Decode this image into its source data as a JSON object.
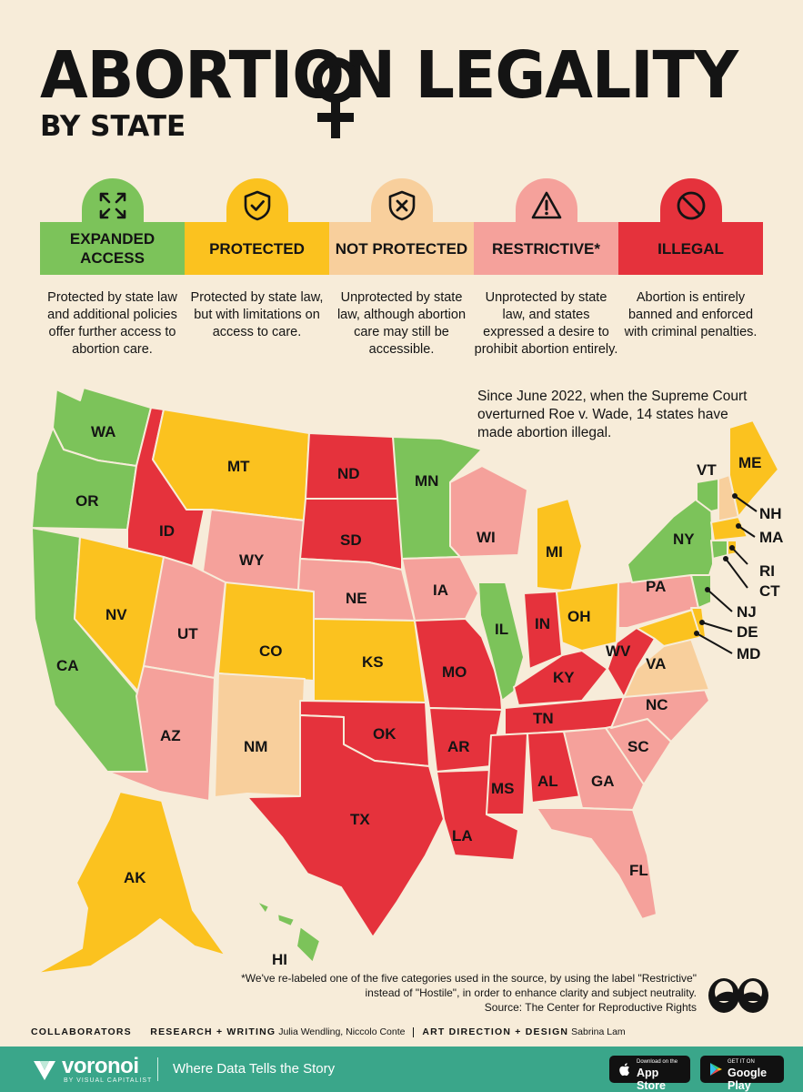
{
  "header": {
    "title": "ABORTION LEGALITY",
    "subtitle": "BY STATE"
  },
  "colors": {
    "expanded_access": "#7cc35a",
    "protected": "#fbc21f",
    "not_protected": "#f8cf9c",
    "restrictive": "#f5a19b",
    "illegal": "#e5323c"
  },
  "categories": [
    {
      "key": "expanded_access",
      "label": "EXPANDED ACCESS",
      "icon": "expand-arrows-icon",
      "description": "Protected by state law and additional policies offer further access to abortion care."
    },
    {
      "key": "protected",
      "label": "PROTECTED",
      "icon": "shield-check-icon",
      "description": "Protected by state law, but with limitations on access to care."
    },
    {
      "key": "not_protected",
      "label": "NOT PROTECTED",
      "icon": "shield-x-icon",
      "description": "Unprotected by state law, although abortion care may still be accessible."
    },
    {
      "key": "restrictive",
      "label": "RESTRICTIVE*",
      "icon": "warning-triangle-icon",
      "description": "Unprotected by state law, and states expressed a desire to prohibit abortion entirely."
    },
    {
      "key": "illegal",
      "label": "ILLEGAL",
      "icon": "prohibited-icon",
      "description": "Abortion is entirely banned and enforced with criminal penalties."
    }
  ],
  "note": "Since June 2022, when the Supreme Court overturned Roe v. Wade, 14 states have made abortion illegal.",
  "states": {
    "WA": "expanded_access",
    "OR": "expanded_access",
    "CA": "expanded_access",
    "ID": "illegal",
    "NV": "protected",
    "MT": "protected",
    "WY": "restrictive",
    "UT": "restrictive",
    "AZ": "restrictive",
    "CO": "protected",
    "NM": "not_protected",
    "ND": "illegal",
    "SD": "illegal",
    "NE": "restrictive",
    "KS": "protected",
    "OK": "illegal",
    "TX": "illegal",
    "MN": "expanded_access",
    "IA": "restrictive",
    "MO": "illegal",
    "AR": "illegal",
    "LA": "illegal",
    "WI": "restrictive",
    "IL": "expanded_access",
    "MI": "protected",
    "IN": "illegal",
    "OH": "protected",
    "KY": "illegal",
    "TN": "illegal",
    "MS": "illegal",
    "AL": "illegal",
    "GA": "restrictive",
    "FL": "restrictive",
    "SC": "restrictive",
    "NC": "restrictive",
    "VA": "not_protected",
    "WV": "illegal",
    "PA": "restrictive",
    "NY": "expanded_access",
    "VT": "expanded_access",
    "NH": "not_protected",
    "ME": "protected",
    "MA": "protected",
    "RI": "protected",
    "CT": "expanded_access",
    "NJ": "expanded_access",
    "DE": "protected",
    "MD": "protected",
    "AK": "protected",
    "HI": "expanded_access"
  },
  "footnote": "*We've re-labeled one of the five categories used in the source, by using the label \"Restrictive\" instead of \"Hostile\", in order to enhance clarity and subject neutrality.",
  "source": "Source: The Center for Reproductive Rights",
  "credits": {
    "heading": "COLLABORATORS",
    "research_label": "RESEARCH + WRITING",
    "research_names": "Julia Wendling, Niccolo Conte",
    "art_label": "ART DIRECTION + DESIGN",
    "art_names": "Sabrina Lam"
  },
  "footer": {
    "brand": "voronoi",
    "brand_sub": "BY VISUAL CAPITALIST",
    "tagline": "Where Data Tells the Story",
    "app_store_small": "Download on the",
    "app_store": "App Store",
    "google_play_small": "GET IT ON",
    "google_play": "Google Play"
  }
}
